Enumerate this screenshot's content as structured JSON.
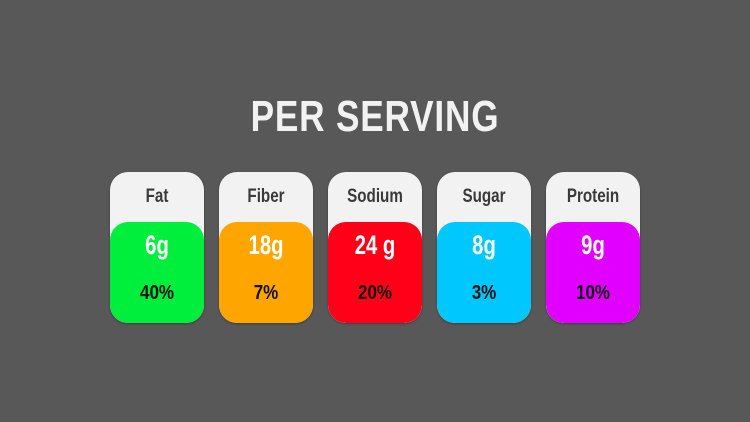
{
  "title": "PER SERVING",
  "nutrients": [
    {
      "label": "Fat",
      "amount": "6g",
      "percent": "40%",
      "color": "#00ee3c"
    },
    {
      "label": "Fiber",
      "amount": "18g",
      "percent": "7%",
      "color": "#ffa500"
    },
    {
      "label": "Sodium",
      "amount": "24 g",
      "percent": "20%",
      "color": "#ff0018"
    },
    {
      "label": "Sugar",
      "amount": "8g",
      "percent": "3%",
      "color": "#00c8ff"
    },
    {
      "label": "Protein",
      "amount": "9g",
      "percent": "10%",
      "color": "#e100ff"
    }
  ]
}
